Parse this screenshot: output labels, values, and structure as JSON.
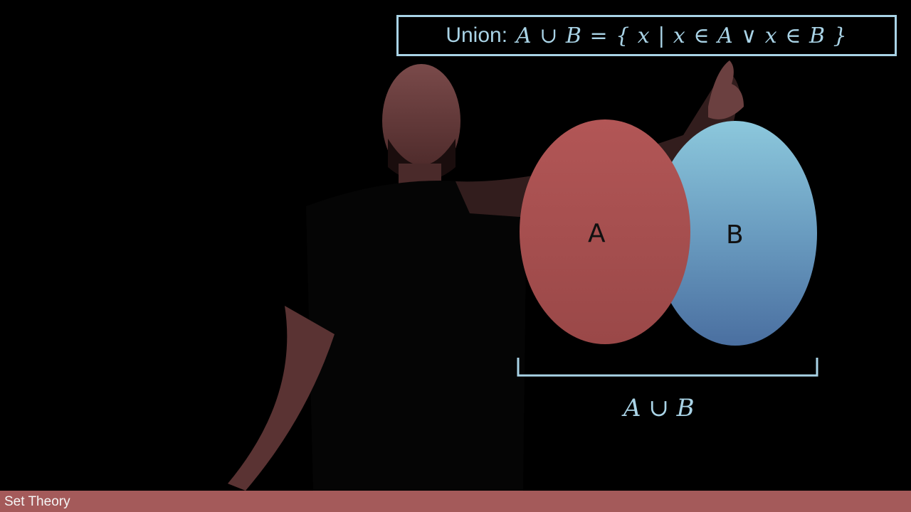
{
  "slide": {
    "definition_lead": "Union:",
    "definition_formula": "A ∪ B = { x | x ∈ A ∨ x ∈ B }",
    "set_a_label": "A",
    "set_b_label": "B",
    "union_label": "A ∪ B",
    "footer_title": "Set Theory"
  },
  "colors": {
    "background": "#000000",
    "set_a": "#b25656",
    "set_b": "#7fbfd6",
    "accent": "#a9d3e6",
    "footer": "#a45a5a"
  }
}
